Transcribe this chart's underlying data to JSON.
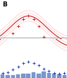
{
  "title": "B",
  "n_months": 13,
  "temp_cross_color": "#cc2222",
  "temp_line_color": "#cc3333",
  "temp_band_color": "#ffaaaa",
  "rain_cross_color": "#2244bb",
  "bar_color": "#7799cc",
  "bar_edge_color": "#5577bb",
  "hline_color": "#999999",
  "background_color": "#ffffff",
  "temp_scatter_x": [
    0,
    1,
    2,
    3,
    4,
    5,
    6,
    7,
    8,
    9,
    10,
    11,
    12
  ],
  "temp_scatter_y": [
    26,
    28,
    31,
    33,
    35,
    36,
    35,
    33,
    30,
    27,
    25,
    24,
    25
  ],
  "rain_scatter_x": [
    0,
    1,
    2,
    3,
    4,
    5,
    6,
    7,
    8,
    9,
    10,
    11,
    12
  ],
  "rain_scatter_y": [
    8,
    10,
    14,
    20,
    25,
    28,
    26,
    22,
    16,
    12,
    9,
    7,
    8
  ],
  "bar_heights": [
    5,
    4,
    4,
    5,
    6,
    6,
    8,
    6,
    9,
    7,
    6,
    5,
    4
  ],
  "xlim": [
    -0.5,
    12.5
  ],
  "temp_ylim": [
    20,
    40
  ],
  "rain_ylim": [
    0,
    35
  ],
  "bar_ylim": [
    0,
    12
  ],
  "hline_temp": 30,
  "sigma": 3.5,
  "curve_offsets": [
    -1.5,
    -0.75,
    0,
    0.75,
    1.5
  ]
}
